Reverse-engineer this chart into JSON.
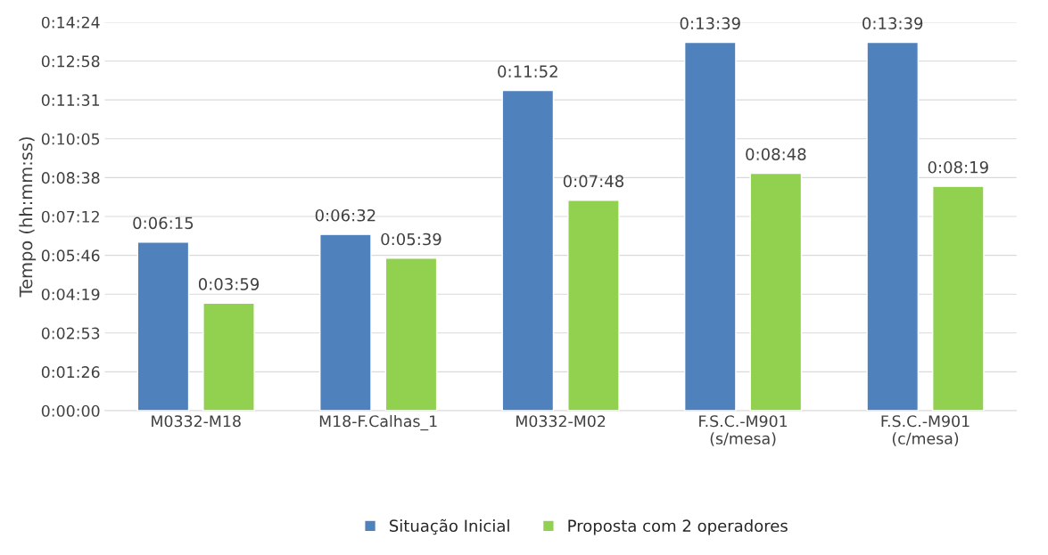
{
  "chart_data": {
    "type": "bar",
    "ylabel": "Tempo (hh:mm:ss)",
    "categories": [
      "M0332-M18",
      "M18-F.Calhas_1",
      "M0332-M02",
      "F.S.C.-M901\n(s/mesa)",
      "F.S.C.-M901\n(c/mesa)"
    ],
    "series": [
      {
        "name": "Situação Inicial",
        "color": "#4f81bd",
        "values": [
          375,
          392,
          712,
          819,
          819
        ],
        "value_labels": [
          "0:06:15",
          "0:06:32",
          "0:11:52",
          "0:13:39",
          "0:13:39"
        ]
      },
      {
        "name": "Proposta com 2 operadores",
        "color": "#92d050",
        "values": [
          239,
          339,
          468,
          528,
          499
        ],
        "value_labels": [
          "0:03:59",
          "0:05:39",
          "0:07:48",
          "0:08:48",
          "0:08:19"
        ]
      }
    ],
    "ylim": [
      0,
      864
    ],
    "yticks": [
      {
        "value": 0,
        "label": "0:00:00"
      },
      {
        "value": 86.4,
        "label": "0:01:26"
      },
      {
        "value": 172.8,
        "label": "0:02:53"
      },
      {
        "value": 259.2,
        "label": "0:04:19"
      },
      {
        "value": 345.6,
        "label": "0:05:46"
      },
      {
        "value": 432,
        "label": "0:07:12"
      },
      {
        "value": 518.4,
        "label": "0:08:38"
      },
      {
        "value": 604.8,
        "label": "0:10:05"
      },
      {
        "value": 691.2,
        "label": "0:11:31"
      },
      {
        "value": 777.6,
        "label": "0:12:58"
      },
      {
        "value": 864,
        "label": "0:14:24"
      }
    ],
    "grid": "y",
    "legend": "bottom"
  }
}
